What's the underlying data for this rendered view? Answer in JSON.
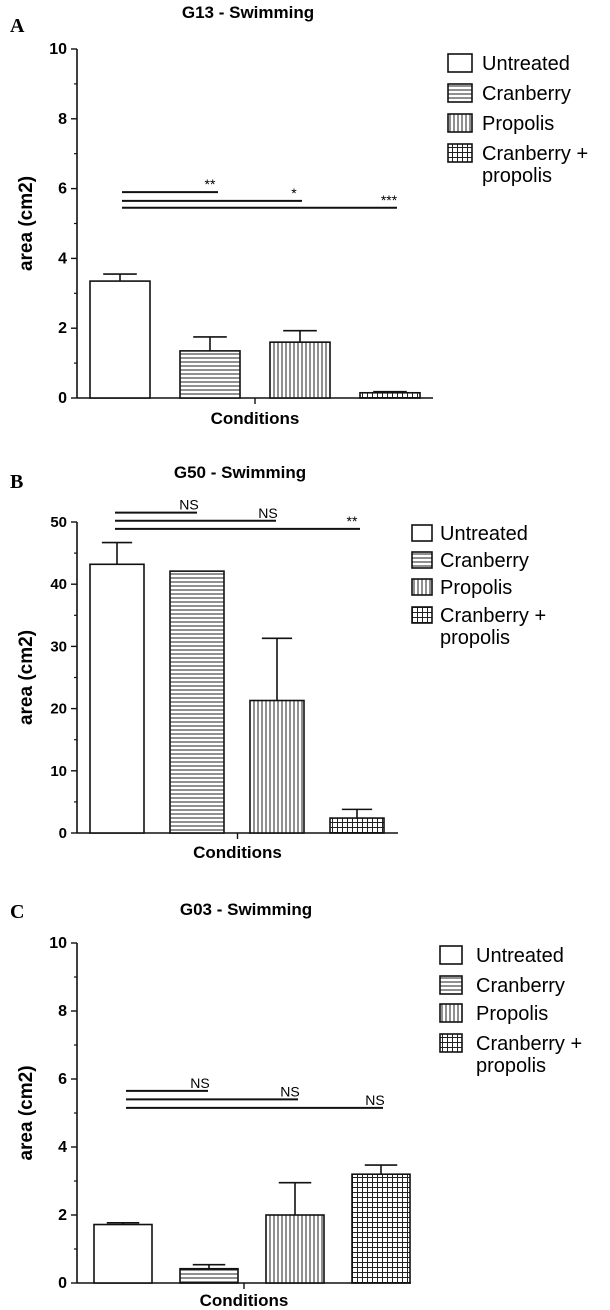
{
  "chart_data": [
    {
      "type": "bar",
      "panel": "A",
      "title": "G13 - Swimming",
      "xlabel": "Conditions",
      "ylabel": "area (cm2)",
      "ylim": [
        0,
        10
      ],
      "yticks": [
        "0",
        "2",
        "4",
        "6",
        "8",
        "10"
      ],
      "categories": [
        "Untreated",
        "Cranberry",
        "Propolis",
        "Cranberry + propolis"
      ],
      "values": [
        3.35,
        1.35,
        1.6,
        0.15
      ],
      "errors": [
        0.2,
        0.4,
        0.33,
        0.03
      ],
      "legend": [
        {
          "label": "Untreated",
          "pattern": "none"
        },
        {
          "label": "Cranberry",
          "pattern": "horizontal"
        },
        {
          "label": "Propolis",
          "pattern": "vertical"
        },
        {
          "label": "Cranberry +",
          "label2": "propolis",
          "pattern": "grid"
        }
      ],
      "comparisons": [
        {
          "target": 1,
          "label": "**",
          "y": 5.9
        },
        {
          "target": 2,
          "label": "*",
          "y": 5.65
        },
        {
          "target": 3,
          "label": "***",
          "y": 5.45
        }
      ]
    },
    {
      "type": "bar",
      "panel": "B",
      "title": "G50 - Swimming",
      "xlabel": "Conditions",
      "ylabel": "area (cm2)",
      "ylim": [
        0,
        50
      ],
      "yticks": [
        "0",
        "10",
        "20",
        "30",
        "40",
        "50"
      ],
      "categories": [
        "Untreated",
        "Cranberry",
        "Propolis",
        "Cranberry + propolis"
      ],
      "values": [
        43.2,
        42.1,
        21.3,
        2.4
      ],
      "errors": [
        3.5,
        0,
        10.0,
        1.4
      ],
      "legend": [
        {
          "label": "Untreated",
          "pattern": "none"
        },
        {
          "label": "Cranberry",
          "pattern": "horizontal"
        },
        {
          "label": "Propolis",
          "pattern": "vertical"
        },
        {
          "label": "Cranberry +",
          "label2": "propolis",
          "pattern": "grid"
        }
      ],
      "comparisons": [
        {
          "target": 1,
          "label": "NS",
          "y": 51.5
        },
        {
          "target": 2,
          "label": "NS",
          "y": 50.2
        },
        {
          "target": 3,
          "label": "**",
          "y": 48.9
        }
      ]
    },
    {
      "type": "bar",
      "panel": "C",
      "title": "G03 - Swimming",
      "xlabel": "Conditions",
      "ylabel": "area (cm2)",
      "ylim": [
        0,
        10
      ],
      "yticks": [
        "0",
        "2",
        "4",
        "6",
        "8",
        "10"
      ],
      "categories": [
        "Untreated",
        "Cranberry",
        "Propolis",
        "Cranberry + propolis"
      ],
      "values": [
        1.72,
        0.42,
        2.0,
        3.2
      ],
      "errors": [
        0.05,
        0.12,
        0.95,
        0.27
      ],
      "legend": [
        {
          "label": "Untreated",
          "pattern": "none"
        },
        {
          "label": "Cranberry",
          "pattern": "horizontal"
        },
        {
          "label": "Propolis",
          "pattern": "vertical"
        },
        {
          "label": "Cranberry +",
          "label2": "propolis",
          "pattern": "grid"
        }
      ],
      "comparisons": [
        {
          "target": 1,
          "label": "NS",
          "y": 5.65
        },
        {
          "target": 2,
          "label": "NS",
          "y": 5.4
        },
        {
          "target": 3,
          "label": "NS",
          "y": 5.15
        }
      ]
    }
  ]
}
